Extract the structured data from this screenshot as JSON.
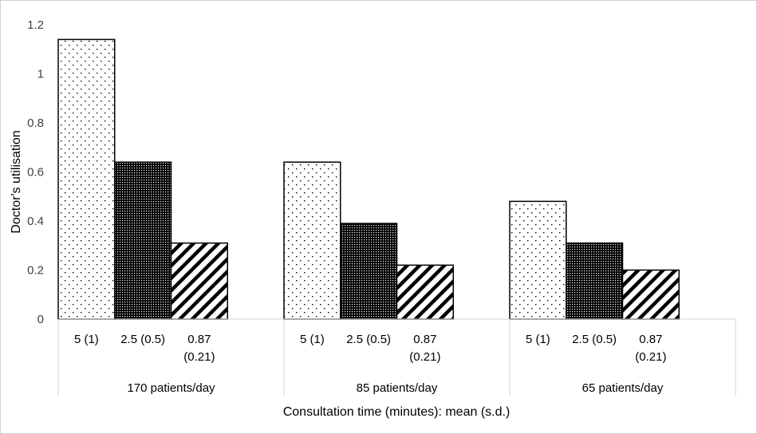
{
  "chart_data": {
    "type": "bar",
    "ylabel": "Doctor's utilisation",
    "xlabel": "Consultation time (minutes): mean (s.d.)",
    "ylim": [
      0,
      1.2
    ],
    "yticks": [
      "0",
      "0.2",
      "0.4",
      "0.6",
      "0.8",
      "1",
      "1.2"
    ],
    "grid": false,
    "legend": "none",
    "groups": [
      "170 patients/day",
      "85 patients/day",
      "65 patients/day"
    ],
    "categories": [
      [
        "5 (1)"
      ],
      [
        "2.5 (0.5)"
      ],
      [
        "0.87",
        "(0.21)"
      ]
    ],
    "series": [
      {
        "category": "5 (1)",
        "pattern": "sparse-dots",
        "values": [
          1.14,
          0.64,
          0.48
        ]
      },
      {
        "category": "2.5 (0.5)",
        "pattern": "dense-dots",
        "values": [
          0.64,
          0.39,
          0.31
        ]
      },
      {
        "category": "0.87 (0.21)",
        "pattern": "diagonal-stripes",
        "values": [
          0.31,
          0.22,
          0.2
        ]
      }
    ]
  }
}
